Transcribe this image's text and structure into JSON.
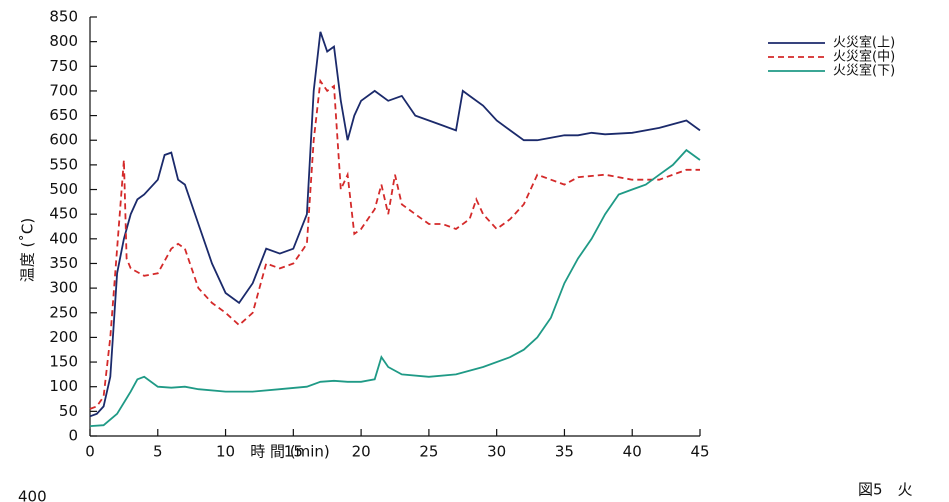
{
  "chart_data": {
    "type": "line",
    "xlabel": "時 間 (min)",
    "ylabel": "温度 (˚C)",
    "annotations": [
      "図5　火",
      "400"
    ],
    "xlim": [
      0,
      45
    ],
    "xticks": [
      0,
      5,
      10,
      15,
      20,
      25,
      30,
      35,
      40,
      45
    ],
    "ylim": [
      0,
      850
    ],
    "yticks": [
      0,
      50,
      100,
      150,
      200,
      250,
      300,
      350,
      400,
      450,
      500,
      550,
      600,
      650,
      700,
      750,
      800,
      850
    ],
    "series": [
      {
        "name": "火災室(上)",
        "color": "#1b2a6b",
        "dash": false,
        "x": [
          0,
          0.5,
          1,
          1.5,
          2,
          2.5,
          3,
          3.5,
          4,
          5,
          5.5,
          6,
          6.5,
          7,
          8,
          9,
          10,
          11,
          12,
          13,
          14,
          15,
          16,
          16.5,
          17,
          17.5,
          18,
          18.5,
          19,
          19.5,
          20,
          21,
          22,
          23,
          24,
          25,
          26,
          27,
          27.5,
          28,
          29,
          30,
          31,
          32,
          33,
          34,
          35,
          36,
          37,
          38,
          40,
          42,
          44,
          45
        ],
        "values": [
          40,
          45,
          60,
          120,
          330,
          400,
          450,
          480,
          490,
          520,
          570,
          575,
          520,
          510,
          430,
          350,
          290,
          270,
          310,
          380,
          370,
          380,
          450,
          700,
          820,
          780,
          790,
          680,
          600,
          650,
          680,
          700,
          680,
          690,
          650,
          640,
          630,
          620,
          700,
          690,
          670,
          640,
          620,
          600,
          600,
          605,
          610,
          610,
          615,
          612,
          615,
          625,
          640,
          620
        ]
      },
      {
        "name": "火災室(中)",
        "color": "#d42a2a",
        "dash": true,
        "x": [
          0,
          0.5,
          1,
          1.5,
          2,
          2.5,
          2.7,
          3,
          4,
          5,
          6,
          6.5,
          7,
          8,
          9,
          10,
          11,
          12,
          13,
          14,
          15,
          16,
          16.5,
          17,
          17.5,
          18,
          18.5,
          19,
          19.5,
          20,
          21,
          21.5,
          22,
          22.5,
          23,
          24,
          25,
          26,
          27,
          28,
          28.5,
          29,
          30,
          31,
          32,
          33,
          34,
          35,
          36,
          38,
          40,
          42,
          44,
          45
        ],
        "values": [
          55,
          60,
          80,
          200,
          380,
          560,
          360,
          340,
          325,
          330,
          380,
          390,
          380,
          300,
          270,
          250,
          225,
          250,
          350,
          340,
          350,
          390,
          600,
          720,
          700,
          710,
          500,
          530,
          410,
          420,
          460,
          510,
          450,
          530,
          470,
          450,
          430,
          430,
          420,
          440,
          480,
          450,
          420,
          440,
          470,
          530,
          520,
          510,
          525,
          530,
          520,
          520,
          540,
          540
        ]
      },
      {
        "name": "火災室(下)",
        "color": "#1f9a86",
        "dash": false,
        "x": [
          0,
          1,
          2,
          3,
          3.5,
          4,
          5,
          6,
          7,
          8,
          10,
          12,
          14,
          16,
          17,
          18,
          19,
          20,
          21,
          21.5,
          22,
          23,
          25,
          27,
          29,
          31,
          32,
          33,
          34,
          35,
          36,
          37,
          38,
          39,
          40,
          41,
          42,
          43,
          44,
          45
        ],
        "values": [
          20,
          22,
          45,
          90,
          115,
          120,
          100,
          98,
          100,
          95,
          90,
          90,
          95,
          100,
          110,
          112,
          110,
          110,
          115,
          160,
          140,
          125,
          120,
          125,
          140,
          160,
          175,
          200,
          240,
          310,
          360,
          400,
          450,
          490,
          500,
          510,
          530,
          550,
          580,
          560
        ]
      }
    ]
  }
}
